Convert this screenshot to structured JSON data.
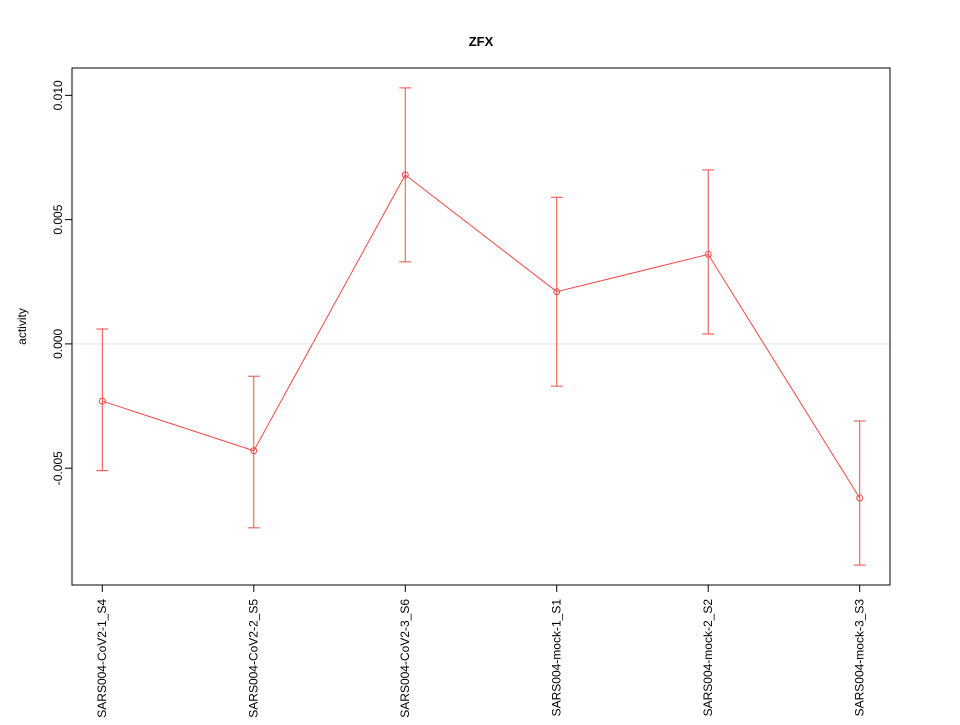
{
  "chart_data": {
    "type": "line",
    "title": "ZFX",
    "xlabel": "",
    "ylabel": "activity",
    "categories": [
      "SARS004-CoV2-1_S4",
      "SARS004-CoV2-2_S5",
      "SARS004-CoV2-3_S6",
      "SARS004-mock-1_S1",
      "SARS004-mock-2_S2",
      "SARS004-mock-3_S3"
    ],
    "values": [
      -0.0023,
      -0.0043,
      0.0068,
      0.0021,
      0.0036,
      -0.0062
    ],
    "error_low": [
      -0.0051,
      -0.0074,
      0.0033,
      -0.0017,
      0.0004,
      -0.0089
    ],
    "error_high": [
      0.0006,
      -0.0013,
      0.0103,
      0.0059,
      0.007,
      -0.0031
    ],
    "ylim": [
      -0.0097,
      0.0111
    ],
    "yticks": [
      -0.005,
      0,
      0.005,
      0.01
    ],
    "ytick_labels": [
      "-0.005",
      "0.000",
      "0.005",
      "0.010"
    ],
    "marker": "open-circle",
    "legend": "none",
    "grid": "single horizontal gridline at y=0",
    "colors": {
      "series": "#f24a46",
      "zero_line": "#e3e3e3",
      "box": "#000000",
      "text": "#000000",
      "background": "#ffffff"
    }
  }
}
